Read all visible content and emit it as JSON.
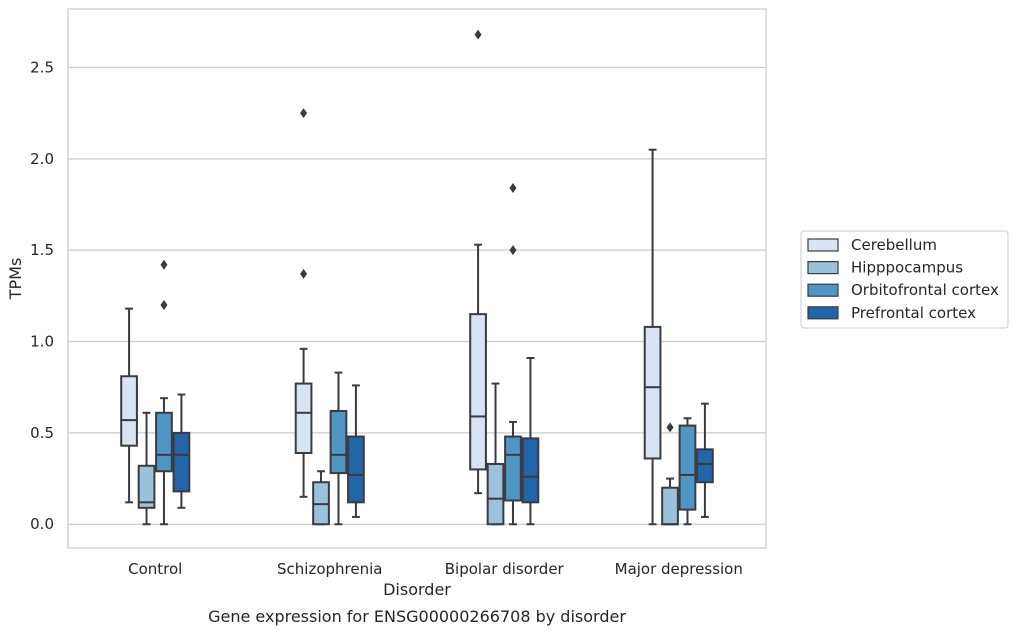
{
  "chart_data": {
    "type": "box",
    "title": "Gene expression for ENSG00000266708 by disorder",
    "xlabel": "Disorder",
    "ylabel": "TPMs",
    "ylim": [
      -0.13,
      2.82
    ],
    "yticks": [
      "0.0",
      "0.5",
      "1.0",
      "1.5",
      "2.0",
      "2.5"
    ],
    "ytick_values": [
      0,
      0.5,
      1.0,
      1.5,
      2.0,
      2.5
    ],
    "categories": [
      "Control",
      "Schizophrenia",
      "Bipolar disorder",
      "Major depression"
    ],
    "grid": "horizontal",
    "legend_position": "right",
    "series": [
      {
        "name": "Cerebellum",
        "color": "#d6e4f4",
        "boxes": [
          {
            "whislo": 0.12,
            "q1": 0.43,
            "med": 0.57,
            "q3": 0.81,
            "whishi": 1.18,
            "fliers": []
          },
          {
            "whislo": 0.15,
            "q1": 0.39,
            "med": 0.61,
            "q3": 0.77,
            "whishi": 0.96,
            "fliers": [
              1.37,
              2.25
            ]
          },
          {
            "whislo": 0.17,
            "q1": 0.3,
            "med": 0.59,
            "q3": 1.15,
            "whishi": 1.53,
            "fliers": [
              2.68
            ]
          },
          {
            "whislo": 0.0,
            "q1": 0.36,
            "med": 0.75,
            "q3": 1.08,
            "whishi": 2.05,
            "fliers": []
          }
        ]
      },
      {
        "name": "Hipppocampus",
        "color": "#9ac2dc",
        "boxes": [
          {
            "whislo": 0.0,
            "q1": 0.09,
            "med": 0.12,
            "q3": 0.32,
            "whishi": 0.61,
            "fliers": []
          },
          {
            "whislo": 0.0,
            "q1": 0.0,
            "med": 0.11,
            "q3": 0.23,
            "whishi": 0.29,
            "fliers": []
          },
          {
            "whislo": 0.0,
            "q1": 0.0,
            "med": 0.14,
            "q3": 0.33,
            "whishi": 0.77,
            "fliers": []
          },
          {
            "whislo": 0.0,
            "q1": 0.0,
            "med": 0.0,
            "q3": 0.2,
            "whishi": 0.25,
            "fliers": [
              0.53
            ]
          }
        ]
      },
      {
        "name": "Orbitofrontal cortex",
        "color": "#5096c4",
        "boxes": [
          {
            "whislo": 0.0,
            "q1": 0.29,
            "med": 0.38,
            "q3": 0.61,
            "whishi": 0.69,
            "fliers": [
              1.2,
              1.42
            ]
          },
          {
            "whislo": 0.0,
            "q1": 0.28,
            "med": 0.38,
            "q3": 0.62,
            "whishi": 0.83,
            "fliers": []
          },
          {
            "whislo": 0.0,
            "q1": 0.13,
            "med": 0.38,
            "q3": 0.48,
            "whishi": 0.56,
            "fliers": [
              1.5,
              1.84
            ]
          },
          {
            "whislo": 0.0,
            "q1": 0.08,
            "med": 0.27,
            "q3": 0.54,
            "whishi": 0.58,
            "fliers": []
          }
        ]
      },
      {
        "name": "Prefrontal cortex",
        "color": "#2365a9",
        "boxes": [
          {
            "whislo": 0.09,
            "q1": 0.18,
            "med": 0.38,
            "q3": 0.5,
            "whishi": 0.71,
            "fliers": []
          },
          {
            "whislo": 0.04,
            "q1": 0.12,
            "med": 0.27,
            "q3": 0.48,
            "whishi": 0.76,
            "fliers": []
          },
          {
            "whislo": 0.0,
            "q1": 0.12,
            "med": 0.26,
            "q3": 0.47,
            "whishi": 0.91,
            "fliers": []
          },
          {
            "whislo": 0.04,
            "q1": 0.23,
            "med": 0.33,
            "q3": 0.41,
            "whishi": 0.66,
            "fliers": []
          }
        ]
      }
    ]
  }
}
